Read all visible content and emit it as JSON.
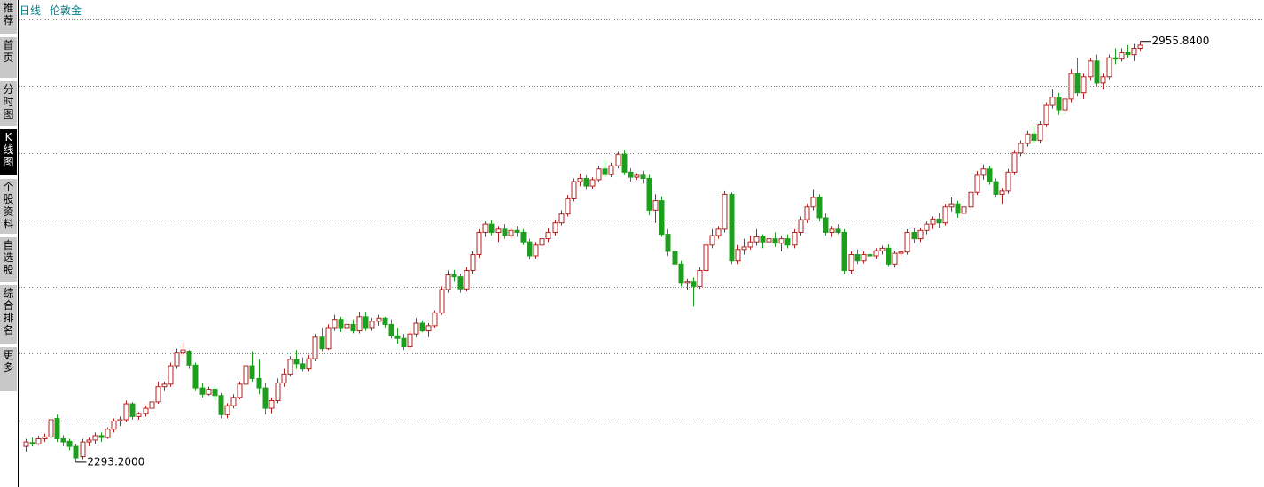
{
  "header": {
    "period": "日线",
    "symbol": "伦敦金"
  },
  "sidebar": {
    "tabs": [
      "推荐",
      "首页",
      "分时图",
      "K线图",
      "个股资料",
      "自选股",
      "综合排名",
      "更多"
    ],
    "active": 3
  },
  "chart_data": {
    "type": "candlestick",
    "ylim": [
      2254,
      3021
    ],
    "gridlines": [
      2990,
      2886,
      2780,
      2675,
      2569,
      2464,
      2359
    ],
    "up_color": "#b22222",
    "down_color": "#1e9e1e",
    "max_label": "2955.8400",
    "min_label": "2293.2000",
    "ohlc": [
      [
        2318,
        2330,
        2310,
        2325
      ],
      [
        2324,
        2332,
        2318,
        2322
      ],
      [
        2322,
        2335,
        2320,
        2330
      ],
      [
        2330,
        2338,
        2325,
        2333
      ],
      [
        2333,
        2365,
        2330,
        2360
      ],
      [
        2362,
        2368,
        2325,
        2330
      ],
      [
        2330,
        2336,
        2318,
        2325
      ],
      [
        2326,
        2330,
        2312,
        2318
      ],
      [
        2318,
        2322,
        2293.2,
        2300
      ],
      [
        2302,
        2330,
        2298,
        2325
      ],
      [
        2325,
        2332,
        2318,
        2328
      ],
      [
        2328,
        2340,
        2322,
        2335
      ],
      [
        2335,
        2340,
        2325,
        2332
      ],
      [
        2332,
        2348,
        2330,
        2345
      ],
      [
        2345,
        2362,
        2340,
        2358
      ],
      [
        2358,
        2365,
        2350,
        2360
      ],
      [
        2360,
        2390,
        2356,
        2385
      ],
      [
        2385,
        2388,
        2360,
        2365
      ],
      [
        2365,
        2372,
        2360,
        2370
      ],
      [
        2370,
        2382,
        2365,
        2378
      ],
      [
        2378,
        2392,
        2372,
        2388
      ],
      [
        2388,
        2420,
        2385,
        2412
      ],
      [
        2412,
        2420,
        2405,
        2416
      ],
      [
        2416,
        2450,
        2412,
        2445
      ],
      [
        2445,
        2472,
        2440,
        2465
      ],
      [
        2465,
        2482,
        2460,
        2470
      ],
      [
        2468,
        2470,
        2440,
        2446
      ],
      [
        2446,
        2450,
        2405,
        2410
      ],
      [
        2410,
        2418,
        2395,
        2400
      ],
      [
        2400,
        2412,
        2398,
        2408
      ],
      [
        2408,
        2412,
        2390,
        2398
      ],
      [
        2398,
        2402,
        2362,
        2368
      ],
      [
        2368,
        2386,
        2362,
        2382
      ],
      [
        2382,
        2400,
        2378,
        2395
      ],
      [
        2395,
        2420,
        2392,
        2416
      ],
      [
        2416,
        2450,
        2410,
        2445
      ],
      [
        2445,
        2468,
        2420,
        2425
      ],
      [
        2425,
        2455,
        2400,
        2410
      ],
      [
        2410,
        2418,
        2368,
        2378
      ],
      [
        2378,
        2395,
        2370,
        2390
      ],
      [
        2390,
        2425,
        2386,
        2418
      ],
      [
        2418,
        2440,
        2412,
        2432
      ],
      [
        2432,
        2460,
        2428,
        2455
      ],
      [
        2455,
        2470,
        2440,
        2448
      ],
      [
        2448,
        2458,
        2436,
        2440
      ],
      [
        2440,
        2462,
        2436,
        2456
      ],
      [
        2456,
        2495,
        2452,
        2490
      ],
      [
        2490,
        2505,
        2468,
        2472
      ],
      [
        2472,
        2510,
        2470,
        2505
      ],
      [
        2505,
        2525,
        2500,
        2518
      ],
      [
        2518,
        2522,
        2498,
        2505
      ],
      [
        2505,
        2515,
        2490,
        2510
      ],
      [
        2510,
        2518,
        2496,
        2500
      ],
      [
        2500,
        2530,
        2496,
        2522
      ],
      [
        2522,
        2530,
        2500,
        2505
      ],
      [
        2505,
        2520,
        2500,
        2515
      ],
      [
        2515,
        2525,
        2508,
        2520
      ],
      [
        2520,
        2522,
        2505,
        2510
      ],
      [
        2510,
        2518,
        2488,
        2492
      ],
      [
        2492,
        2505,
        2480,
        2488
      ],
      [
        2488,
        2495,
        2470,
        2475
      ],
      [
        2475,
        2500,
        2470,
        2495
      ],
      [
        2495,
        2520,
        2490,
        2512
      ],
      [
        2512,
        2516,
        2498,
        2500
      ],
      [
        2500,
        2512,
        2490,
        2508
      ],
      [
        2508,
        2532,
        2505,
        2528
      ],
      [
        2528,
        2570,
        2525,
        2565
      ],
      [
        2565,
        2595,
        2560,
        2588
      ],
      [
        2588,
        2596,
        2578,
        2585
      ],
      [
        2585,
        2590,
        2560,
        2566
      ],
      [
        2566,
        2600,
        2562,
        2595
      ],
      [
        2595,
        2625,
        2590,
        2620
      ],
      [
        2620,
        2660,
        2615,
        2655
      ],
      [
        2655,
        2672,
        2648,
        2668
      ],
      [
        2668,
        2675,
        2650,
        2655
      ],
      [
        2655,
        2665,
        2640,
        2660
      ],
      [
        2660,
        2668,
        2645,
        2650
      ],
      [
        2650,
        2662,
        2645,
        2658
      ],
      [
        2658,
        2665,
        2648,
        2655
      ],
      [
        2655,
        2660,
        2635,
        2640
      ],
      [
        2640,
        2645,
        2612,
        2618
      ],
      [
        2618,
        2640,
        2614,
        2635
      ],
      [
        2635,
        2650,
        2630,
        2645
      ],
      [
        2645,
        2662,
        2640,
        2655
      ],
      [
        2655,
        2675,
        2650,
        2670
      ],
      [
        2670,
        2690,
        2666,
        2684
      ],
      [
        2684,
        2714,
        2680,
        2708
      ],
      [
        2708,
        2740,
        2704,
        2735
      ],
      [
        2735,
        2748,
        2728,
        2740
      ],
      [
        2740,
        2745,
        2722,
        2728
      ],
      [
        2728,
        2742,
        2724,
        2738
      ],
      [
        2738,
        2760,
        2734,
        2755
      ],
      [
        2755,
        2768,
        2742,
        2746
      ],
      [
        2746,
        2765,
        2742,
        2760
      ],
      [
        2760,
        2782,
        2756,
        2778
      ],
      [
        2778,
        2785,
        2745,
        2750
      ],
      [
        2750,
        2756,
        2735,
        2742
      ],
      [
        2742,
        2748,
        2738,
        2745
      ],
      [
        2745,
        2752,
        2732,
        2740
      ],
      [
        2740,
        2746,
        2682,
        2690
      ],
      [
        2690,
        2715,
        2670,
        2705
      ],
      [
        2705,
        2712,
        2648,
        2652
      ],
      [
        2652,
        2660,
        2618,
        2625
      ],
      [
        2625,
        2630,
        2600,
        2605
      ],
      [
        2605,
        2610,
        2570,
        2575
      ],
      [
        2575,
        2582,
        2565,
        2578
      ],
      [
        2578,
        2584,
        2538,
        2570
      ],
      [
        2570,
        2600,
        2566,
        2595
      ],
      [
        2595,
        2640,
        2592,
        2635
      ],
      [
        2635,
        2660,
        2630,
        2650
      ],
      [
        2650,
        2665,
        2645,
        2660
      ],
      [
        2660,
        2720,
        2655,
        2715
      ],
      [
        2715,
        2718,
        2605,
        2610
      ],
      [
        2610,
        2635,
        2605,
        2628
      ],
      [
        2628,
        2645,
        2620,
        2632
      ],
      [
        2632,
        2650,
        2628,
        2640
      ],
      [
        2640,
        2660,
        2634,
        2648
      ],
      [
        2648,
        2652,
        2630,
        2640
      ],
      [
        2640,
        2650,
        2632,
        2645
      ],
      [
        2645,
        2655,
        2632,
        2638
      ],
      [
        2638,
        2650,
        2625,
        2645
      ],
      [
        2645,
        2652,
        2630,
        2635
      ],
      [
        2635,
        2660,
        2630,
        2655
      ],
      [
        2655,
        2680,
        2650,
        2675
      ],
      [
        2675,
        2700,
        2670,
        2695
      ],
      [
        2695,
        2722,
        2690,
        2710
      ],
      [
        2710,
        2715,
        2672,
        2678
      ],
      [
        2678,
        2685,
        2650,
        2655
      ],
      [
        2655,
        2665,
        2648,
        2660
      ],
      [
        2660,
        2668,
        2652,
        2655
      ],
      [
        2655,
        2660,
        2590,
        2595
      ],
      [
        2595,
        2625,
        2590,
        2620
      ],
      [
        2620,
        2628,
        2605,
        2610
      ],
      [
        2610,
        2625,
        2606,
        2620
      ],
      [
        2620,
        2626,
        2612,
        2618
      ],
      [
        2618,
        2630,
        2614,
        2626
      ],
      [
        2626,
        2634,
        2620,
        2630
      ],
      [
        2630,
        2636,
        2602,
        2605
      ],
      [
        2605,
        2625,
        2600,
        2622
      ],
      [
        2622,
        2626,
        2618,
        2624
      ],
      [
        2624,
        2660,
        2620,
        2655
      ],
      [
        2655,
        2662,
        2638,
        2645
      ],
      [
        2645,
        2662,
        2640,
        2658
      ],
      [
        2658,
        2672,
        2652,
        2668
      ],
      [
        2668,
        2680,
        2660,
        2676
      ],
      [
        2676,
        2686,
        2662,
        2670
      ],
      [
        2670,
        2700,
        2666,
        2695
      ],
      [
        2695,
        2710,
        2688,
        2700
      ],
      [
        2700,
        2705,
        2678,
        2685
      ],
      [
        2685,
        2700,
        2680,
        2695
      ],
      [
        2695,
        2722,
        2690,
        2718
      ],
      [
        2718,
        2752,
        2714,
        2745
      ],
      [
        2745,
        2762,
        2738,
        2755
      ],
      [
        2755,
        2760,
        2730,
        2735
      ],
      [
        2735,
        2740,
        2710,
        2715
      ],
      [
        2715,
        2725,
        2700,
        2720
      ],
      [
        2720,
        2755,
        2716,
        2750
      ],
      [
        2750,
        2785,
        2745,
        2780
      ],
      [
        2780,
        2800,
        2775,
        2795
      ],
      [
        2795,
        2815,
        2790,
        2810
      ],
      [
        2810,
        2822,
        2796,
        2800
      ],
      [
        2800,
        2830,
        2795,
        2825
      ],
      [
        2825,
        2860,
        2822,
        2855
      ],
      [
        2855,
        2880,
        2850,
        2868
      ],
      [
        2868,
        2875,
        2840,
        2848
      ],
      [
        2848,
        2870,
        2842,
        2865
      ],
      [
        2865,
        2912,
        2860,
        2905
      ],
      [
        2905,
        2930,
        2870,
        2875
      ],
      [
        2875,
        2905,
        2865,
        2900
      ],
      [
        2900,
        2930,
        2895,
        2925
      ],
      [
        2925,
        2935,
        2885,
        2890
      ],
      [
        2890,
        2905,
        2880,
        2900
      ],
      [
        2900,
        2935,
        2896,
        2930
      ],
      [
        2930,
        2945,
        2920,
        2928
      ],
      [
        2928,
        2945,
        2924,
        2938
      ],
      [
        2938,
        2950,
        2930,
        2935
      ],
      [
        2935,
        2952,
        2925,
        2945
      ],
      [
        2945,
        2955.84,
        2940,
        2950
      ]
    ]
  }
}
